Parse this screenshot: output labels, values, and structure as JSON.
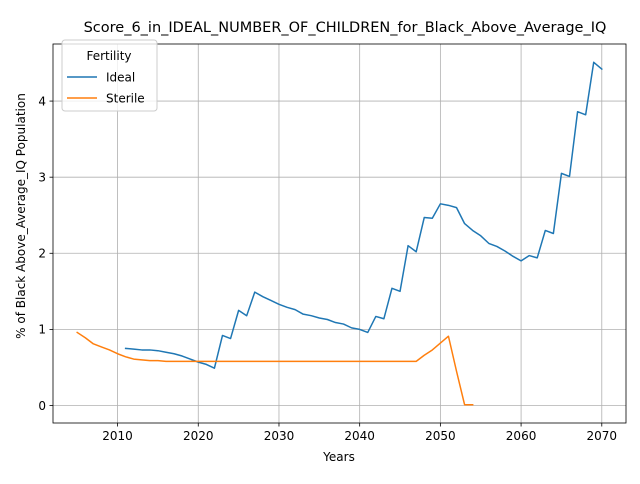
{
  "chart_data": {
    "type": "line",
    "title": "Score_6_in_IDEAL_NUMBER_OF_CHILDREN_for_Black_Above_Average_IQ",
    "xlabel": "Years",
    "ylabel": "% of Black Above_Average_IQ Population",
    "xlim": [
      2002,
      2073
    ],
    "ylim": [
      -0.23,
      4.75
    ],
    "xticks": [
      2010,
      2020,
      2030,
      2040,
      2050,
      2060,
      2070
    ],
    "yticks": [
      0,
      1,
      2,
      3,
      4
    ],
    "grid": true,
    "legend": {
      "title": "Fertility",
      "position": "upper-left"
    },
    "series": [
      {
        "name": "Ideal",
        "color": "#1f77b4",
        "x": [
          2011,
          2012,
          2013,
          2014,
          2015,
          2016,
          2017,
          2018,
          2019,
          2020,
          2021,
          2022,
          2023,
          2024,
          2025,
          2026,
          2027,
          2028,
          2029,
          2030,
          2031,
          2032,
          2033,
          2034,
          2035,
          2036,
          2037,
          2038,
          2039,
          2040,
          2041,
          2042,
          2043,
          2044,
          2045,
          2046,
          2047,
          2048,
          2049,
          2050,
          2051,
          2052,
          2053,
          2054,
          2055,
          2056,
          2057,
          2058,
          2059,
          2060,
          2061,
          2062,
          2063,
          2064,
          2065,
          2066,
          2067,
          2068,
          2069,
          2070
        ],
        "y": [
          0.75,
          0.74,
          0.73,
          0.73,
          0.72,
          0.7,
          0.68,
          0.65,
          0.61,
          0.57,
          0.54,
          0.49,
          0.92,
          0.88,
          1.25,
          1.18,
          1.49,
          1.43,
          1.38,
          1.33,
          1.29,
          1.26,
          1.2,
          1.18,
          1.15,
          1.13,
          1.09,
          1.07,
          1.02,
          1.0,
          0.96,
          1.17,
          1.14,
          1.54,
          1.5,
          2.1,
          2.02,
          2.47,
          2.46,
          2.65,
          2.63,
          2.6,
          2.39,
          2.3,
          2.23,
          2.13,
          2.09,
          2.03,
          1.96,
          1.9,
          1.97,
          1.94,
          2.3,
          2.26,
          3.05,
          3.01,
          3.86,
          3.82,
          4.51,
          4.42
        ]
      },
      {
        "name": "Sterile",
        "color": "#ff7f0e",
        "x": [
          2005,
          2006,
          2007,
          2008,
          2009,
          2010,
          2011,
          2012,
          2013,
          2014,
          2015,
          2016,
          2017,
          2018,
          2019,
          2020,
          2021,
          2022,
          2023,
          2024,
          2025,
          2026,
          2027,
          2028,
          2029,
          2030,
          2031,
          2032,
          2033,
          2034,
          2035,
          2036,
          2037,
          2038,
          2039,
          2040,
          2041,
          2042,
          2043,
          2044,
          2045,
          2046,
          2047,
          2048,
          2049,
          2050,
          2051,
          2052,
          2053,
          2054
        ],
        "y": [
          0.96,
          0.89,
          0.81,
          0.77,
          0.73,
          0.68,
          0.64,
          0.61,
          0.6,
          0.59,
          0.59,
          0.58,
          0.58,
          0.58,
          0.58,
          0.58,
          0.58,
          0.58,
          0.58,
          0.58,
          0.58,
          0.58,
          0.58,
          0.58,
          0.58,
          0.58,
          0.58,
          0.58,
          0.58,
          0.58,
          0.58,
          0.58,
          0.58,
          0.58,
          0.58,
          0.58,
          0.58,
          0.58,
          0.58,
          0.58,
          0.58,
          0.58,
          0.58,
          0.66,
          0.73,
          0.82,
          0.91,
          0.45,
          0.01,
          0.01
        ]
      }
    ]
  }
}
